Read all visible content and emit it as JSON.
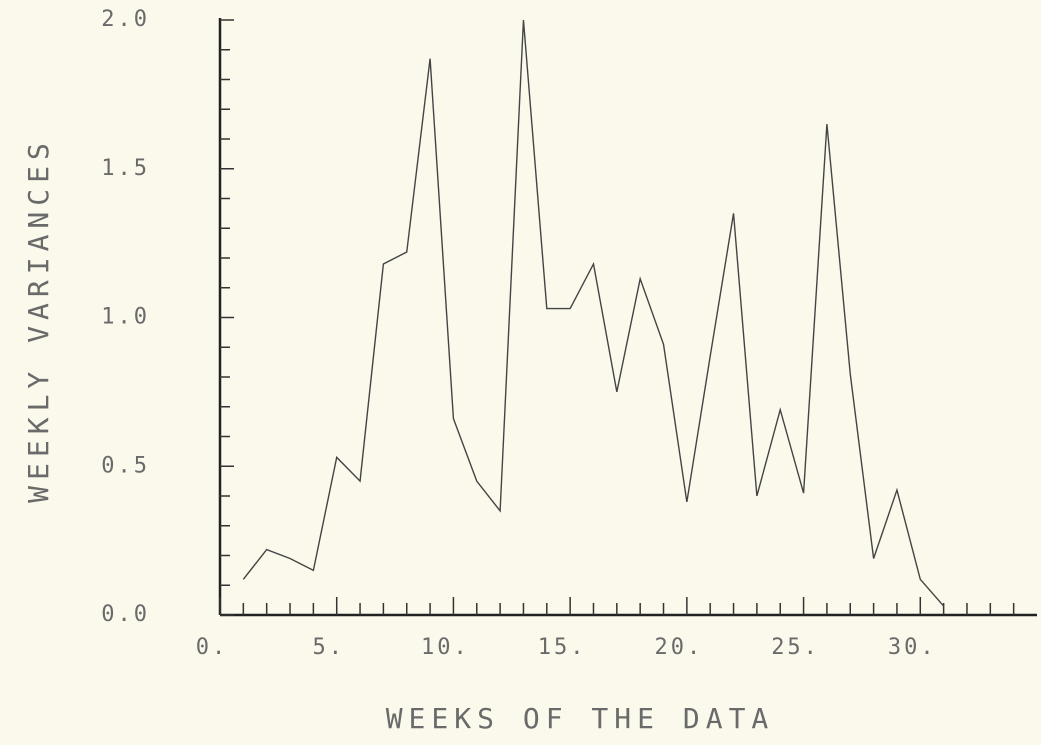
{
  "chart_data": {
    "type": "line",
    "xlabel": "WEEKS OF THE DATA",
    "ylabel": "WEEKLY VARIANCES",
    "x": [
      1,
      2,
      3,
      4,
      5,
      6,
      7,
      8,
      9,
      10,
      11,
      12,
      13,
      14,
      15,
      16,
      17,
      18,
      19,
      20,
      21,
      22,
      23,
      24,
      25,
      26,
      27,
      28,
      29,
      30,
      31
    ],
    "series": [
      {
        "color": "#444444",
        "values": [
          0.12,
          0.22,
          0.19,
          0.15,
          0.53,
          0.45,
          1.18,
          1.22,
          1.87,
          0.66,
          0.45,
          0.35,
          2.0,
          1.03,
          1.03,
          1.18,
          0.75,
          1.13,
          0.91,
          0.38,
          0.87,
          1.35,
          0.4,
          0.69,
          0.41,
          1.65,
          0.81,
          0.19,
          0.42,
          0.12,
          0.03
        ]
      }
    ],
    "xlim": [
      0,
      35
    ],
    "ylim": [
      0,
      2.0
    ],
    "xticks": [
      {
        "value": 0,
        "label": "0."
      },
      {
        "value": 5,
        "label": "5."
      },
      {
        "value": 10,
        "label": "10."
      },
      {
        "value": 15,
        "label": "15."
      },
      {
        "value": 20,
        "label": "20."
      },
      {
        "value": 25,
        "label": "25."
      },
      {
        "value": 30,
        "label": "30."
      }
    ],
    "yticks": [
      {
        "value": 0,
        "label": "0.0"
      },
      {
        "value": 0.5,
        "label": "0.5"
      },
      {
        "value": 1.0,
        "label": "1.0"
      },
      {
        "value": 1.5,
        "label": "1.5"
      },
      {
        "value": 2.0,
        "label": "2.0"
      }
    ],
    "grid": false
  }
}
